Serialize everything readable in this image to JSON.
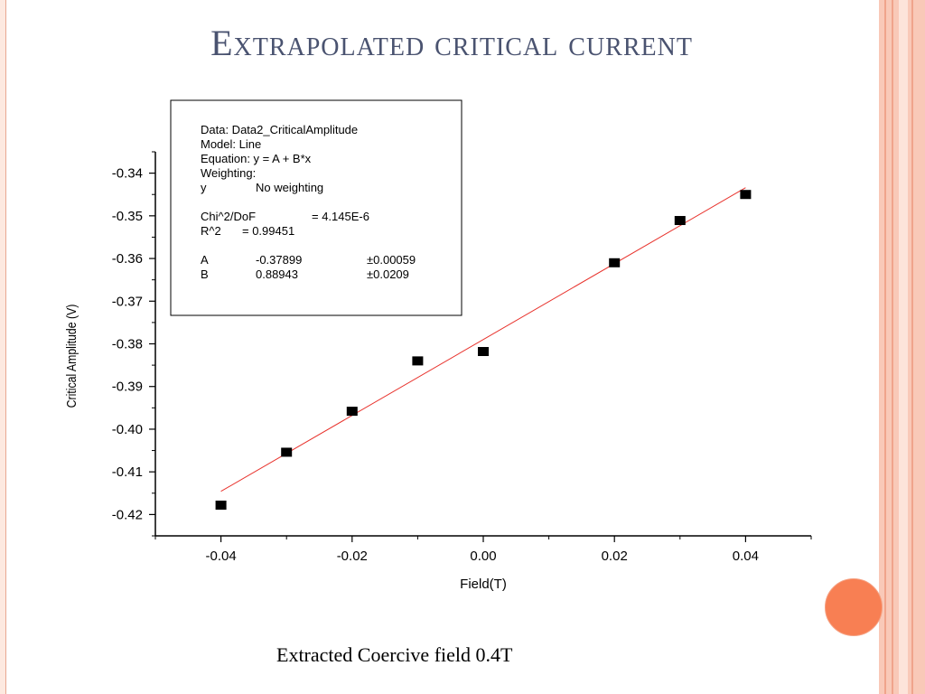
{
  "slide": {
    "title": "Extrapolated critical current",
    "caption": "Extracted Coercive field 0.4T"
  },
  "colors": {
    "title": "#4a5370",
    "frame": "#f9c9b8",
    "accent": "#f87f53",
    "fit_line": "#e8322c",
    "points": "#000000"
  },
  "chart_data": {
    "type": "scatter",
    "title": "",
    "xlabel": "Field(T)",
    "ylabel": "Critical Amplitude (V)",
    "xlim": [
      -0.05,
      0.05
    ],
    "ylim": [
      -0.425,
      -0.335
    ],
    "x_ticks": [
      "-0.04",
      "-0.02",
      "0.00",
      "0.02",
      "0.04"
    ],
    "y_ticks": [
      "-0.34",
      "-0.35",
      "-0.36",
      "-0.37",
      "-0.38",
      "-0.39",
      "-0.40",
      "-0.41",
      "-0.42"
    ],
    "grid": false,
    "series": [
      {
        "marker": "square",
        "points": [
          {
            "x": -0.04,
            "y": -0.4178
          },
          {
            "x": -0.03,
            "y": -0.4054
          },
          {
            "x": -0.02,
            "y": -0.3958
          },
          {
            "x": -0.01,
            "y": -0.384
          },
          {
            "x": 0.0,
            "y": -0.3818
          },
          {
            "x": 0.02,
            "y": -0.361
          },
          {
            "x": 0.03,
            "y": -0.3511
          },
          {
            "x": 0.04,
            "y": -0.345
          }
        ]
      }
    ],
    "fit": {
      "intercept": -0.37899,
      "slope": 0.88943,
      "x_range": [
        -0.04,
        0.04
      ]
    },
    "fit_box": {
      "lines": [
        "Data: Data2_CriticalAmplitude",
        "Model: Line",
        "Equation: y = A + B*x",
        "Weighting:"
      ],
      "weighting": [
        "y",
        "No weighting"
      ],
      "chi_row": [
        "Chi^2/DoF",
        "= 4.145E-6"
      ],
      "r2_row": [
        "R^2",
        "=  0.99451"
      ],
      "params": [
        [
          "A",
          "-0.37899",
          "±0.00059"
        ],
        [
          "B",
          "0.88943",
          "±0.0209"
        ]
      ]
    }
  }
}
